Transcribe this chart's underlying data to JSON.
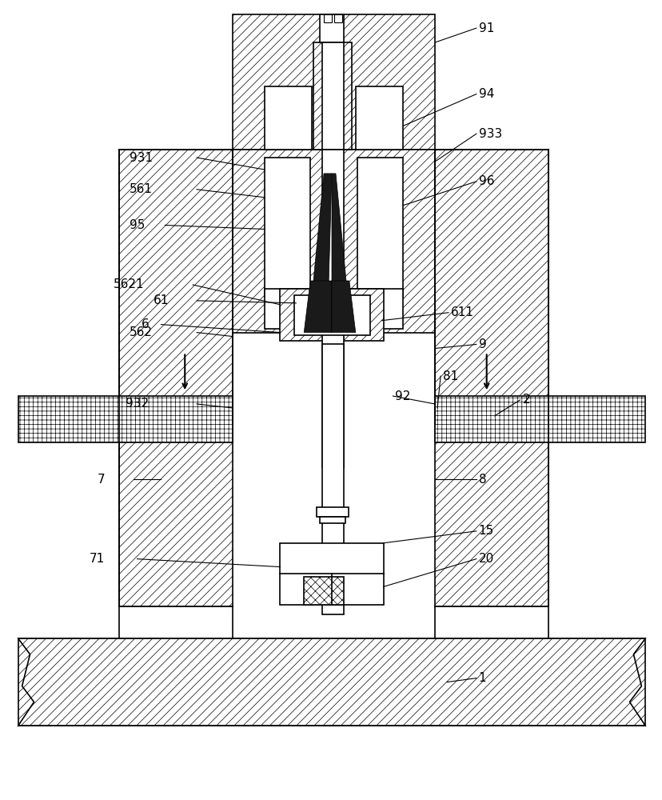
{
  "bg_color": "#ffffff",
  "lw": 1.2,
  "hatch_lw": 0.5,
  "label_fs": 11
}
